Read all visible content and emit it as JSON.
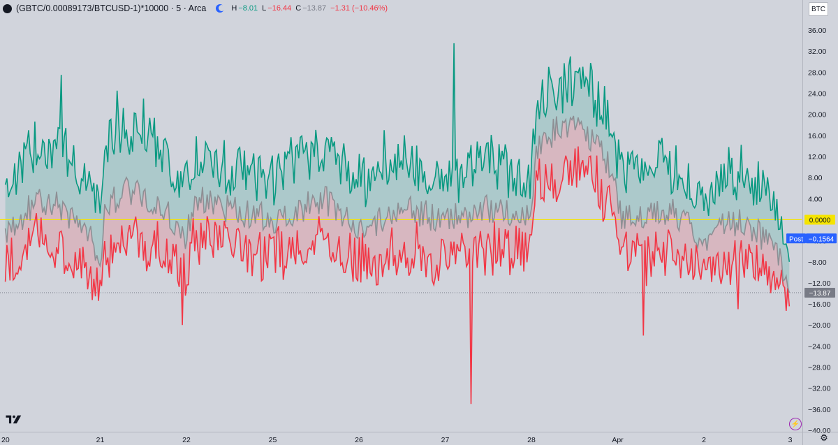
{
  "header": {
    "title": "(GBTC/0.00089173/BTCUSD-1)*10000 · 5 · Arca",
    "ohlc": [
      {
        "label": "H",
        "value": "−8.01",
        "tone": "green"
      },
      {
        "label": "L",
        "value": "−16.44",
        "tone": "red"
      },
      {
        "label": "C",
        "value": "−13.87",
        "tone": "gray"
      }
    ],
    "change": "−1.31 (−10.46%)"
  },
  "currency_button": "BTC",
  "price_tags": {
    "zero": "0.0000",
    "post_label": "Post",
    "post_value": "−0.1564",
    "last_value": "−13.87"
  },
  "icons": [
    "tradingview-logo-icon",
    "flash-icon",
    "gear-icon",
    "moon-icon"
  ],
  "colors": {
    "background": "#d1d4dc",
    "high_line": "#089981",
    "low_line": "#f23645",
    "close_line": "#8d8f94",
    "high_fill": "rgba(8,153,129,0.18)",
    "low_fill": "rgba(242,54,69,0.18)",
    "zero_line": "#f5e400",
    "post_tag": "#2962ff",
    "last_tag": "#787b86"
  },
  "chart_data": {
    "type": "line",
    "ylim": [
      -40,
      38
    ],
    "y_ticks": [
      36,
      32,
      28,
      24,
      20,
      16,
      12,
      8,
      4,
      0,
      -4,
      -8,
      -12,
      -16,
      -20,
      -24,
      -28,
      -32,
      -36,
      -40
    ],
    "y_tick_labels": [
      "36.00",
      "32.00",
      "28.00",
      "24.00",
      "20.00",
      "16.00",
      "12.00",
      "8.00",
      "4.00",
      "",
      "−4.00",
      "−8.00",
      "−12.00",
      "−16.00",
      "−20.00",
      "−24.00",
      "−28.00",
      "−32.00",
      "−36.00",
      "−40.00"
    ],
    "x_labels": [
      "20",
      "21",
      "22",
      "25",
      "26",
      "27",
      "28",
      "Apr",
      "2",
      "3"
    ],
    "x_label_index": [
      0,
      1,
      2,
      3,
      4,
      5,
      6,
      7,
      8,
      9
    ],
    "session_anchors": [
      {
        "session": 0,
        "x_pos": 0.0,
        "high": 6,
        "close": -2,
        "low": -7
      },
      {
        "session": 0.15,
        "x_pos": 0.15,
        "high": 10,
        "close": 2,
        "low": -3
      },
      {
        "session": 0.3,
        "x_pos": 0.3,
        "high": 14,
        "close": 4,
        "low": -2
      },
      {
        "session": 0.5,
        "x_pos": 0.5,
        "high": 12,
        "close": 3,
        "low": -4
      },
      {
        "session": 0.7,
        "x_pos": 0.7,
        "high": 10,
        "close": 0,
        "low": -6
      },
      {
        "session": 0.9,
        "x_pos": 0.9,
        "high": 4,
        "close": -4,
        "low": -9
      },
      {
        "session": 1.0,
        "x_pos": 1.0,
        "high": 0,
        "close": -8,
        "low": -14
      },
      {
        "session": 1.05,
        "x_pos": 1.05,
        "high": 12,
        "close": 2,
        "low": -4
      },
      {
        "session": 1.3,
        "x_pos": 1.3,
        "high": 16,
        "close": 6,
        "low": -2
      },
      {
        "session": 1.6,
        "x_pos": 1.6,
        "high": 14,
        "close": 4,
        "low": -3
      },
      {
        "session": 2.0,
        "x_pos": 2.0,
        "high": 4,
        "close": -3,
        "low": -8
      },
      {
        "session": 2.1,
        "x_pos": 2.1,
        "high": 10,
        "close": 4,
        "low": -1
      },
      {
        "session": 2.5,
        "x_pos": 2.5,
        "high": 8,
        "close": 2,
        "low": -3
      },
      {
        "session": 3.0,
        "x_pos": 3.0,
        "high": 6,
        "close": 0,
        "low": -5
      },
      {
        "session": 3.3,
        "x_pos": 3.3,
        "high": 10,
        "close": 2,
        "low": -4
      },
      {
        "session": 3.6,
        "x_pos": 3.6,
        "high": 12,
        "close": 4,
        "low": -2
      },
      {
        "session": 4.0,
        "x_pos": 4.0,
        "high": 6,
        "close": -2,
        "low": -7
      },
      {
        "session": 4.5,
        "x_pos": 4.5,
        "high": 10,
        "close": 2,
        "low": -4
      },
      {
        "session": 5.0,
        "x_pos": 5.0,
        "high": 6,
        "close": 0,
        "low": -6
      },
      {
        "session": 5.5,
        "x_pos": 5.5,
        "high": 10,
        "close": 2,
        "low": -4
      },
      {
        "session": 6.0,
        "x_pos": 6.0,
        "high": 6,
        "close": 0,
        "low": -4
      },
      {
        "session": 6.05,
        "x_pos": 6.05,
        "high": 22,
        "close": 14,
        "low": 8
      },
      {
        "session": 6.3,
        "x_pos": 6.3,
        "high": 24,
        "close": 17,
        "low": 10
      },
      {
        "session": 6.6,
        "x_pos": 6.6,
        "high": 25,
        "close": 18,
        "low": 12
      },
      {
        "session": 6.9,
        "x_pos": 6.9,
        "high": 18,
        "close": 10,
        "low": 4
      },
      {
        "session": 7.05,
        "x_pos": 7.05,
        "high": 8,
        "close": 0,
        "low": -4
      },
      {
        "session": 7.3,
        "x_pos": 7.3,
        "high": 8,
        "close": 0,
        "low": -6
      },
      {
        "session": 7.6,
        "x_pos": 7.6,
        "high": 9,
        "close": 2,
        "low": -4
      },
      {
        "session": 8.0,
        "x_pos": 8.0,
        "high": 2,
        "close": -4,
        "low": -9
      },
      {
        "session": 8.3,
        "x_pos": 8.3,
        "high": 8,
        "close": 0,
        "low": -6
      },
      {
        "session": 8.6,
        "x_pos": 8.6,
        "high": 6,
        "close": -2,
        "low": -7
      },
      {
        "session": 8.85,
        "x_pos": 8.85,
        "high": 2,
        "close": -6,
        "low": -11
      },
      {
        "session": 9.0,
        "x_pos": 9.0,
        "high": -8.01,
        "close": -13.87,
        "low": -16.44
      }
    ],
    "spikes": [
      {
        "session": 0.55,
        "series": "high",
        "value": 27.5
      },
      {
        "session": 1.95,
        "series": "low",
        "value": -20
      },
      {
        "session": 1.2,
        "series": "high",
        "value": 24.5
      },
      {
        "session": 1.5,
        "series": "high",
        "value": 23
      },
      {
        "session": 5.1,
        "series": "high",
        "value": 33.5
      },
      {
        "session": 5.3,
        "series": "low",
        "value": -35
      },
      {
        "session": 6.45,
        "series": "high",
        "value": 31
      },
      {
        "session": 6.2,
        "series": "high",
        "value": 29
      },
      {
        "session": 7.3,
        "series": "low",
        "value": -22
      },
      {
        "session": 4.3,
        "series": "high",
        "value": 17
      },
      {
        "session": 8.4,
        "series": "low",
        "value": -17
      }
    ],
    "series": [
      {
        "name": "H",
        "color_key": "high_line"
      },
      {
        "name": "C",
        "color_key": "close_line"
      },
      {
        "name": "L",
        "color_key": "low_line"
      }
    ],
    "horizontal_lines": [
      {
        "value": 0,
        "style": "solid",
        "color_key": "zero_line"
      },
      {
        "value": -13.87,
        "style": "dotted",
        "color_key": "last_tag"
      }
    ],
    "grid": false
  }
}
